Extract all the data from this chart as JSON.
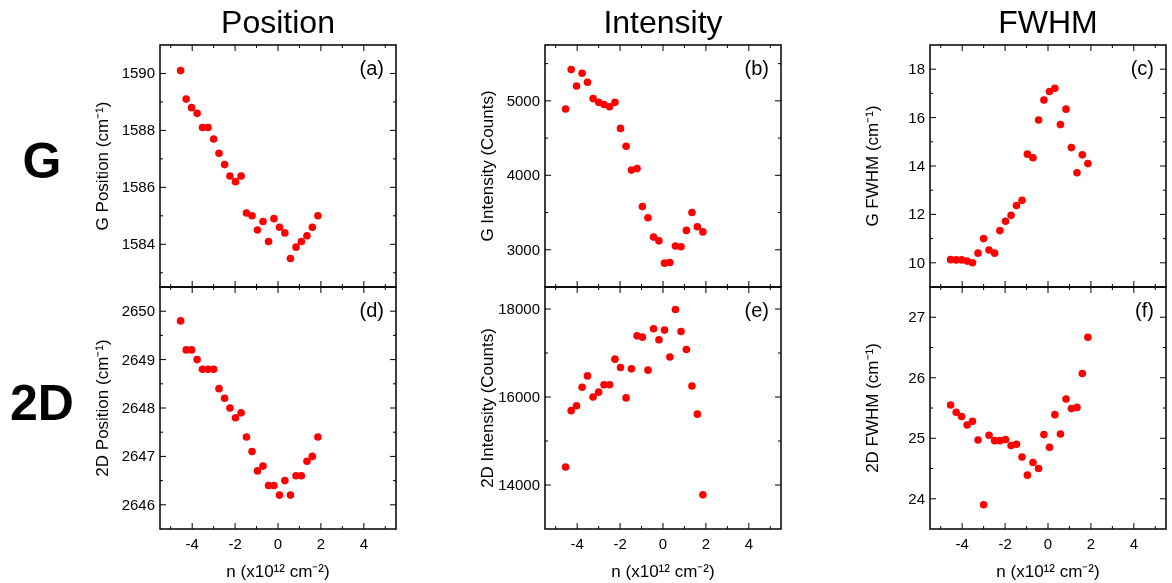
{
  "chart_data": [
    {
      "type": "scatter",
      "title": "Position",
      "ylabel": "G Position (cm⁻¹)",
      "annotations": [
        "(a)",
        "G"
      ],
      "tick_labels": "y",
      "marker": "circle",
      "color": "#ff0000",
      "x": [
        -4.54,
        -4.28,
        -4.03,
        -3.77,
        -3.52,
        -3.26,
        -3.0,
        -2.75,
        -2.49,
        -2.24,
        -1.98,
        -1.72,
        -1.47,
        -1.21,
        -0.96,
        -0.7,
        -0.44,
        -0.19,
        0.07,
        0.32,
        0.58,
        0.84,
        1.09,
        1.35,
        1.6,
        1.86
      ],
      "values": [
        1590.1,
        1589.1,
        1588.8,
        1588.6,
        1588.1,
        1588.1,
        1587.7,
        1587.2,
        1586.8,
        1586.4,
        1586.2,
        1586.4,
        1585.1,
        1585.0,
        1584.5,
        1584.8,
        1584.1,
        1584.9,
        1584.6,
        1584.4,
        1583.5,
        1583.9,
        1584.1,
        1584.3,
        1584.6,
        1585.0
      ],
      "xlim": [
        -5.5,
        5.5
      ],
      "xticks": [
        {
          "value": -5,
          "label": null
        },
        -4,
        {
          "value": -3,
          "label": null
        },
        -2,
        {
          "value": -1,
          "label": null
        },
        0,
        {
          "value": 1,
          "label": null
        },
        2,
        {
          "value": 3,
          "label": null
        },
        4,
        {
          "value": 5,
          "label": null
        }
      ],
      "ylim": [
        1582.5,
        1591
      ],
      "yticks": [
        {
          "value": 1583,
          "label": null
        },
        1584,
        {
          "value": 1585,
          "label": null
        },
        1586,
        {
          "value": 1587,
          "label": null
        },
        1588,
        {
          "value": 1589,
          "label": null
        },
        1590
      ]
    },
    {
      "type": "scatter",
      "title": "Intensity",
      "ylabel": "G Intensity (Counts)",
      "annotations": [
        "(b)"
      ],
      "tick_labels": "y",
      "marker": "circle",
      "color": "#ff0000",
      "x": [
        -4.54,
        -4.28,
        -4.03,
        -3.77,
        -3.52,
        -3.26,
        -3.0,
        -2.75,
        -2.49,
        -2.24,
        -1.98,
        -1.72,
        -1.47,
        -1.21,
        -0.96,
        -0.7,
        -0.44,
        -0.19,
        0.07,
        0.32,
        0.58,
        0.84,
        1.09,
        1.35,
        1.6,
        1.86
      ],
      "values": [
        4890,
        5420,
        5200,
        5370,
        5250,
        5030,
        4980,
        4950,
        4920,
        4980,
        4630,
        4390,
        4070,
        4090,
        3580,
        3430,
        3170,
        3120,
        2820,
        2830,
        3050,
        3040,
        3260,
        3500,
        3310,
        3240
      ],
      "xlim": [
        -5.5,
        5.5
      ],
      "xticks": [
        {
          "value": -5,
          "label": null
        },
        -4,
        {
          "value": -3,
          "label": null
        },
        -2,
        {
          "value": -1,
          "label": null
        },
        0,
        {
          "value": 1,
          "label": null
        },
        2,
        {
          "value": 3,
          "label": null
        },
        4,
        {
          "value": 5,
          "label": null
        }
      ],
      "ylim": [
        2500,
        5750
      ],
      "yticks": [
        3000,
        {
          "value": 3500,
          "label": null
        },
        4000,
        {
          "value": 4500,
          "label": null
        },
        5000,
        {
          "value": 5500,
          "label": null
        }
      ]
    },
    {
      "type": "scatter",
      "title": "FWHM",
      "ylabel": "G FWHM (cm⁻¹)",
      "annotations": [
        "(c)"
      ],
      "tick_labels": "y",
      "marker": "circle",
      "color": "#ff0000",
      "x": [
        -4.54,
        -4.28,
        -4.03,
        -3.77,
        -3.52,
        -3.26,
        -3.0,
        -2.75,
        -2.49,
        -2.24,
        -1.98,
        -1.72,
        -1.47,
        -1.21,
        -0.96,
        -0.7,
        -0.44,
        -0.19,
        0.07,
        0.32,
        0.58,
        0.84,
        1.09,
        1.35,
        1.6,
        1.86
      ],
      "values": [
        10.13,
        10.12,
        10.12,
        10.07,
        10.0,
        10.4,
        11.0,
        10.53,
        10.4,
        11.33,
        11.72,
        11.96,
        12.37,
        12.58,
        14.49,
        14.34,
        15.9,
        16.73,
        17.08,
        17.21,
        15.71,
        16.35,
        14.76,
        13.72,
        14.46,
        14.1
      ],
      "xlim": [
        -5.5,
        5.5
      ],
      "xticks": [
        {
          "value": -5,
          "label": null
        },
        -4,
        {
          "value": -3,
          "label": null
        },
        -2,
        {
          "value": -1,
          "label": null
        },
        0,
        {
          "value": 1,
          "label": null
        },
        2,
        {
          "value": 3,
          "label": null
        },
        4,
        {
          "value": 5,
          "label": null
        }
      ],
      "ylim": [
        9,
        19
      ],
      "yticks": [
        10,
        {
          "value": 11,
          "label": null
        },
        12,
        {
          "value": 13,
          "label": null
        },
        14,
        {
          "value": 15,
          "label": null
        },
        16,
        {
          "value": 17,
          "label": null
        },
        18
      ]
    },
    {
      "type": "scatter",
      "xlabel": "n (x10¹² cm⁻²)",
      "ylabel": "2D Position (cm⁻¹)",
      "annotations": [
        "(d)",
        "2D"
      ],
      "marker": "circle",
      "color": "#ff0000",
      "x": [
        -4.54,
        -4.28,
        -4.03,
        -3.77,
        -3.52,
        -3.26,
        -3.0,
        -2.75,
        -2.49,
        -2.24,
        -1.98,
        -1.72,
        -1.47,
        -1.21,
        -0.96,
        -0.7,
        -0.44,
        -0.19,
        0.07,
        0.32,
        0.58,
        0.84,
        1.09,
        1.35,
        1.6,
        1.86
      ],
      "values": [
        2649.8,
        2649.2,
        2649.2,
        2649.0,
        2648.8,
        2648.8,
        2648.8,
        2648.4,
        2648.2,
        2648.0,
        2647.8,
        2647.9,
        2647.4,
        2647.1,
        2646.7,
        2646.8,
        2646.4,
        2646.4,
        2646.2,
        2646.5,
        2646.2,
        2646.6,
        2646.6,
        2646.9,
        2647.0,
        2647.4
      ],
      "xlim": [
        -5.5,
        5.5
      ],
      "xticks": [
        {
          "value": -5,
          "label": null
        },
        -4,
        {
          "value": -3,
          "label": null
        },
        -2,
        {
          "value": -1,
          "label": null
        },
        0,
        {
          "value": 1,
          "label": null
        },
        2,
        {
          "value": 3,
          "label": null
        },
        4,
        {
          "value": 5,
          "label": null
        }
      ],
      "ylim": [
        2645.5,
        2650.5
      ],
      "yticks": [
        2646,
        {
          "value": 2646.5,
          "label": null
        },
        2647,
        {
          "value": 2647.5,
          "label": null
        },
        2648,
        {
          "value": 2648.5,
          "label": null
        },
        2649,
        {
          "value": 2649.5,
          "label": null
        },
        2650
      ]
    },
    {
      "type": "scatter",
      "xlabel": "n (x10¹² cm⁻²)",
      "ylabel": "2D Intensity (Counts)",
      "annotations": [
        "(e)"
      ],
      "marker": "circle",
      "color": "#ff0000",
      "x": [
        -4.54,
        -4.28,
        -4.03,
        -3.77,
        -3.52,
        -3.26,
        -3.0,
        -2.75,
        -2.49,
        -2.24,
        -1.98,
        -1.72,
        -1.47,
        -1.21,
        -0.96,
        -0.7,
        -0.44,
        -0.19,
        0.07,
        0.32,
        0.58,
        0.84,
        1.09,
        1.35,
        1.6,
        1.86
      ],
      "values": [
        14410,
        15690,
        15800,
        16220,
        16480,
        16000,
        16110,
        16280,
        16280,
        16860,
        16670,
        15980,
        16640,
        17390,
        17360,
        16610,
        17550,
        17300,
        17520,
        16910,
        17990,
        17490,
        17080,
        16250,
        15610,
        13780
      ],
      "xlim": [
        -5.5,
        5.5
      ],
      "xticks": [
        {
          "value": -5,
          "label": null
        },
        -4,
        {
          "value": -3,
          "label": null
        },
        -2,
        {
          "value": -1,
          "label": null
        },
        0,
        {
          "value": 1,
          "label": null
        },
        2,
        {
          "value": 3,
          "label": null
        },
        4,
        {
          "value": 5,
          "label": null
        }
      ],
      "ylim": [
        13000,
        18500
      ],
      "yticks": [
        14000,
        {
          "value": 15000,
          "label": null
        },
        16000,
        {
          "value": 17000,
          "label": null
        },
        18000
      ]
    },
    {
      "type": "scatter",
      "xlabel": "n (x10¹² cm⁻²)",
      "ylabel": "2D FWHM (cm⁻¹)",
      "annotations": [
        "(f)"
      ],
      "marker": "circle",
      "color": "#ff0000",
      "x": [
        -4.54,
        -4.28,
        -4.03,
        -3.77,
        -3.52,
        -3.26,
        -3.0,
        -2.75,
        -2.49,
        -2.24,
        -1.98,
        -1.72,
        -1.47,
        -1.21,
        -0.96,
        -0.7,
        -0.44,
        -0.19,
        0.07,
        0.32,
        0.58,
        0.84,
        1.09,
        1.35,
        1.6,
        1.86
      ],
      "values": [
        25.55,
        25.43,
        25.36,
        25.22,
        25.28,
        24.97,
        23.9,
        25.05,
        24.96,
        24.96,
        24.98,
        24.88,
        24.9,
        24.69,
        24.39,
        24.6,
        24.5,
        25.06,
        24.85,
        25.39,
        25.07,
        25.65,
        25.49,
        25.51,
        26.07,
        26.67
      ],
      "xlim": [
        -5.5,
        5.5
      ],
      "xticks": [
        {
          "value": -5,
          "label": null
        },
        -4,
        {
          "value": -3,
          "label": null
        },
        -2,
        {
          "value": -1,
          "label": null
        },
        0,
        {
          "value": 1,
          "label": null
        },
        2,
        {
          "value": 3,
          "label": null
        },
        4,
        {
          "value": 5,
          "label": null
        }
      ],
      "ylim": [
        23.5,
        27.5
      ],
      "yticks": [
        24,
        {
          "value": 24.5,
          "label": null
        },
        25,
        {
          "value": 25.5,
          "label": null
        },
        26,
        {
          "value": 26.5,
          "label": null
        },
        27
      ]
    }
  ]
}
